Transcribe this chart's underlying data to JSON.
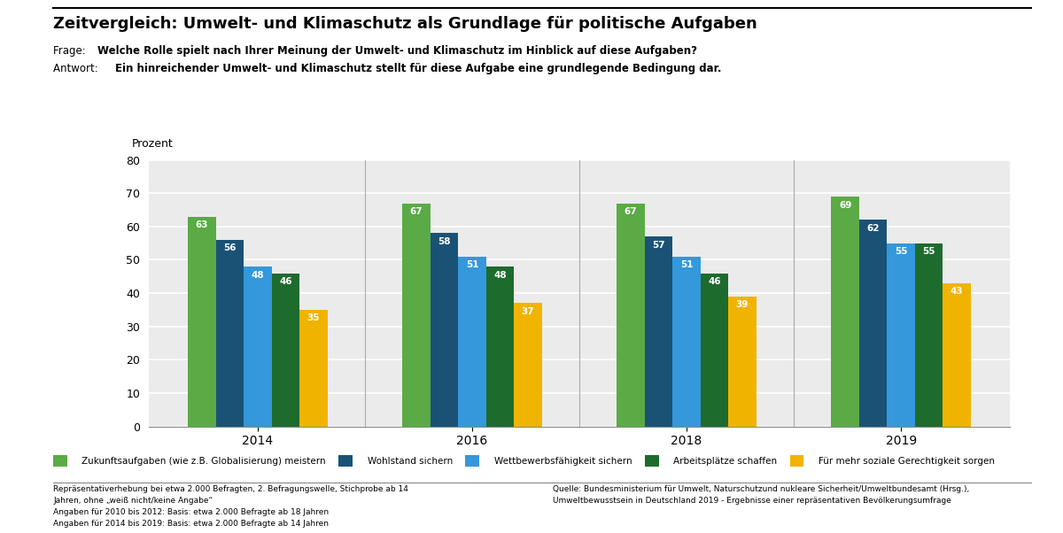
{
  "title": "Zeitvergleich: Umwelt- und Klimaschutz als Grundlage für politische Aufgaben",
  "frage_prefix": "Frage: ",
  "frage_bold": "Welche Rolle spielt nach Ihrer Meinung der Umwelt- und Klimaschutz im Hinblick auf diese Aufgaben?",
  "antwort_prefix": "Antwort: ",
  "antwort_bold": "Ein hinreichender Umwelt- und Klimaschutz stellt für diese Aufgabe eine grundlegende Bedingung dar.",
  "ylabel": "Prozent",
  "years": [
    "2014",
    "2016",
    "2018",
    "2019"
  ],
  "series": [
    {
      "label": "Zukunftsaufgaben (wie z.B. Globalisierung) meistern",
      "color": "#5aaa46",
      "values": [
        63,
        67,
        67,
        69
      ]
    },
    {
      "label": "Wohlstand sichern",
      "color": "#1a5276",
      "values": [
        56,
        58,
        57,
        62
      ]
    },
    {
      "label": "Wettbewerbsfähigkeit sichern",
      "color": "#3498db",
      "values": [
        48,
        51,
        51,
        55
      ]
    },
    {
      "label": "Arbeitsplätze schaffen",
      "color": "#1e6b2e",
      "values": [
        46,
        48,
        46,
        55
      ]
    },
    {
      "label": "Für mehr soziale Gerechtigkeit sorgen",
      "color": "#f0b400",
      "values": [
        35,
        37,
        39,
        43
      ]
    }
  ],
  "ylim": [
    0,
    80
  ],
  "yticks": [
    0,
    10,
    20,
    30,
    40,
    50,
    60,
    70,
    80
  ],
  "background_color": "#ebebeb",
  "grid_color": "#ffffff",
  "footnote_left_lines": [
    "Repräsentativerhebung bei etwa 2.000 Befragten, 2. Befragungswelle, Stichprobe ab 14",
    "Jahren, ohne „weiß nicht/keine Angabe“",
    "Angaben für 2010 bis 2012: Basis: etwa 2.000 Befragte ab 18 Jahren",
    "Angaben für 2014 bis 2019: Basis: etwa 2.000 Befragte ab 14 Jahren"
  ],
  "footnote_right_lines": [
    "Quelle: Bundesministerium für Umwelt, Naturschutzund nukleare Sicherheit/Umweltbundesamt (Hrsg.),",
    "Umweltbewusstsein in Deutschland 2019 - Ergebnisse einer repräsentativen Bevölkerungsumfrage"
  ]
}
